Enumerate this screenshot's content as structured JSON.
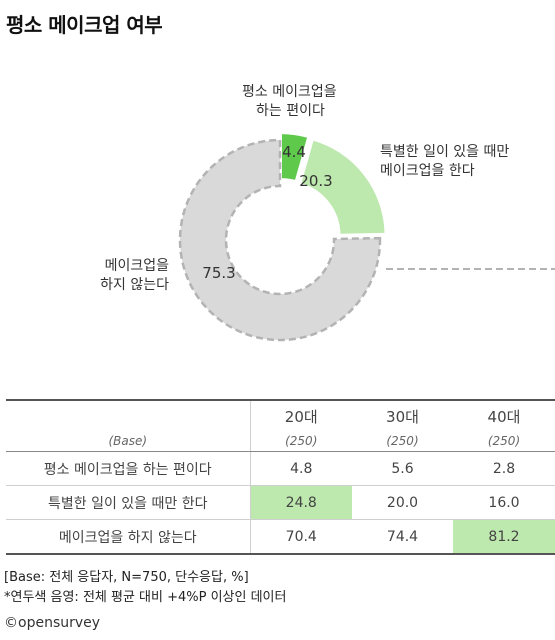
{
  "title": "평소 메이크업 여부",
  "chart_data": {
    "type": "pie",
    "slices": [
      {
        "label_lines": [
          "평소 메이크업을",
          "하는 편이다"
        ],
        "value": 4.4,
        "value_label": "4.4",
        "color": "#5ec94a"
      },
      {
        "label_lines": [
          "특별한 일이 있을 때만",
          "메이크업을 한다"
        ],
        "value": 20.3,
        "value_label": "20.3",
        "color": "#bde8ae"
      },
      {
        "label_lines": [
          "메이크업을",
          "하지 않는다"
        ],
        "value": 75.3,
        "value_label": "75.3",
        "color": "#d9d9d9"
      }
    ]
  },
  "table": {
    "base_label": "(Base)",
    "columns": [
      {
        "name": "20대",
        "base": "(250)"
      },
      {
        "name": "30대",
        "base": "(250)"
      },
      {
        "name": "40대",
        "base": "(250)"
      }
    ],
    "rows": [
      {
        "label": "평소 메이크업을 하는 편이다",
        "values": [
          "4.8",
          "5.6",
          "2.8"
        ],
        "highlight": [
          false,
          false,
          false
        ]
      },
      {
        "label": "특별한 일이 있을 때만 한다",
        "values": [
          "24.8",
          "20.0",
          "16.0"
        ],
        "highlight": [
          true,
          false,
          false
        ]
      },
      {
        "label": "메이크업을 하지 않는다",
        "values": [
          "70.4",
          "74.4",
          "81.2"
        ],
        "highlight": [
          false,
          false,
          true
        ]
      }
    ]
  },
  "notes": {
    "base_note": "[Base: 전체 응답자, N=750, 단수응답, %]",
    "color_note": "*연두색 음영: 전체 평균 대비 +4%P 이상인 데이터"
  },
  "brand": "©opensurvey"
}
